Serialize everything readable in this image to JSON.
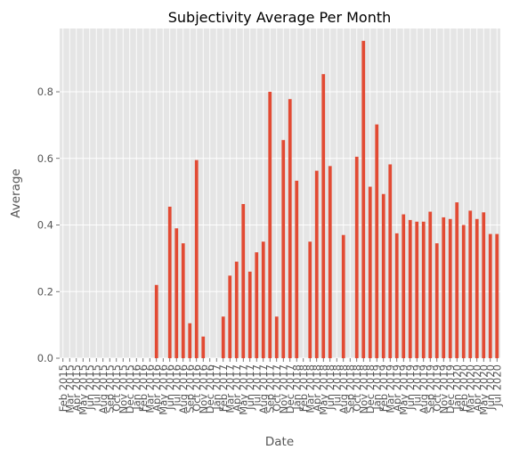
{
  "chart_data": {
    "type": "bar",
    "title": "Subjectivity Average Per Month",
    "xlabel": "Date",
    "ylabel": "Average",
    "ylim": [
      0,
      0.99
    ],
    "yticks": [
      0.0,
      0.2,
      0.4,
      0.6,
      0.8
    ],
    "grid": true,
    "bar_color": "#E24A33",
    "background_color": "#E5E5E5",
    "categories": [
      "Feb 2015",
      "Mar 2015",
      "Apr 2015",
      "May 2015",
      "Jun 2015",
      "Jul 2015",
      "Aug 2015",
      "Sep 2015",
      "Oct 2015",
      "Nov 2015",
      "Dec 2015",
      "Jan 2016",
      "Feb 2016",
      "Mar 2016",
      "Apr 2016",
      "May 2016",
      "Jun 2016",
      "Jul 2016",
      "Aug 2016",
      "Sep 2016",
      "Oct 2016",
      "Nov 2016",
      "Dec 2016",
      "Jan 2017",
      "Feb 2017",
      "Mar 2017",
      "Apr 2017",
      "May 2017",
      "Jun 2017",
      "Jul 2017",
      "Aug 2017",
      "Sep 2017",
      "Oct 2017",
      "Nov 2017",
      "Dec 2017",
      "Jan 2018",
      "Feb 2018",
      "Mar 2018",
      "Apr 2018",
      "May 2018",
      "Jun 2018",
      "Jul 2018",
      "Aug 2018",
      "Sep 2018",
      "Oct 2018",
      "Nov 2018",
      "Dec 2018",
      "Jan 2019",
      "Feb 2019",
      "Mar 2019",
      "Apr 2019",
      "May 2019",
      "Jun 2019",
      "Jul 2019",
      "Aug 2019",
      "Sep 2019",
      "Oct 2019",
      "Nov 2019",
      "Dec 2019",
      "Jan 2020",
      "Feb 2020",
      "Mar 2020",
      "Apr 2020",
      "May 2020",
      "Jun 2020",
      "Jul 2020"
    ],
    "values": [
      0,
      0,
      0,
      0,
      0,
      0,
      0,
      0,
      0,
      0,
      0,
      0,
      0,
      0,
      0.22,
      0,
      0.455,
      0.39,
      0.345,
      0.105,
      0.595,
      0.065,
      0,
      0,
      0.125,
      0.248,
      0.29,
      0.463,
      0.26,
      0.318,
      0.35,
      0.8,
      0.125,
      0.655,
      0.778,
      0.533,
      0,
      0.35,
      0.563,
      0.853,
      0.577,
      0,
      0.37,
      0,
      0.605,
      0.953,
      0.515,
      0.702,
      0.493,
      0.582,
      0.375,
      0.432,
      0.415,
      0.41,
      0.41,
      0.44,
      0.345,
      0.423,
      0.418,
      0.468,
      0.4,
      0.443,
      0.418,
      0.438,
      0.373,
      0.373
    ]
  }
}
